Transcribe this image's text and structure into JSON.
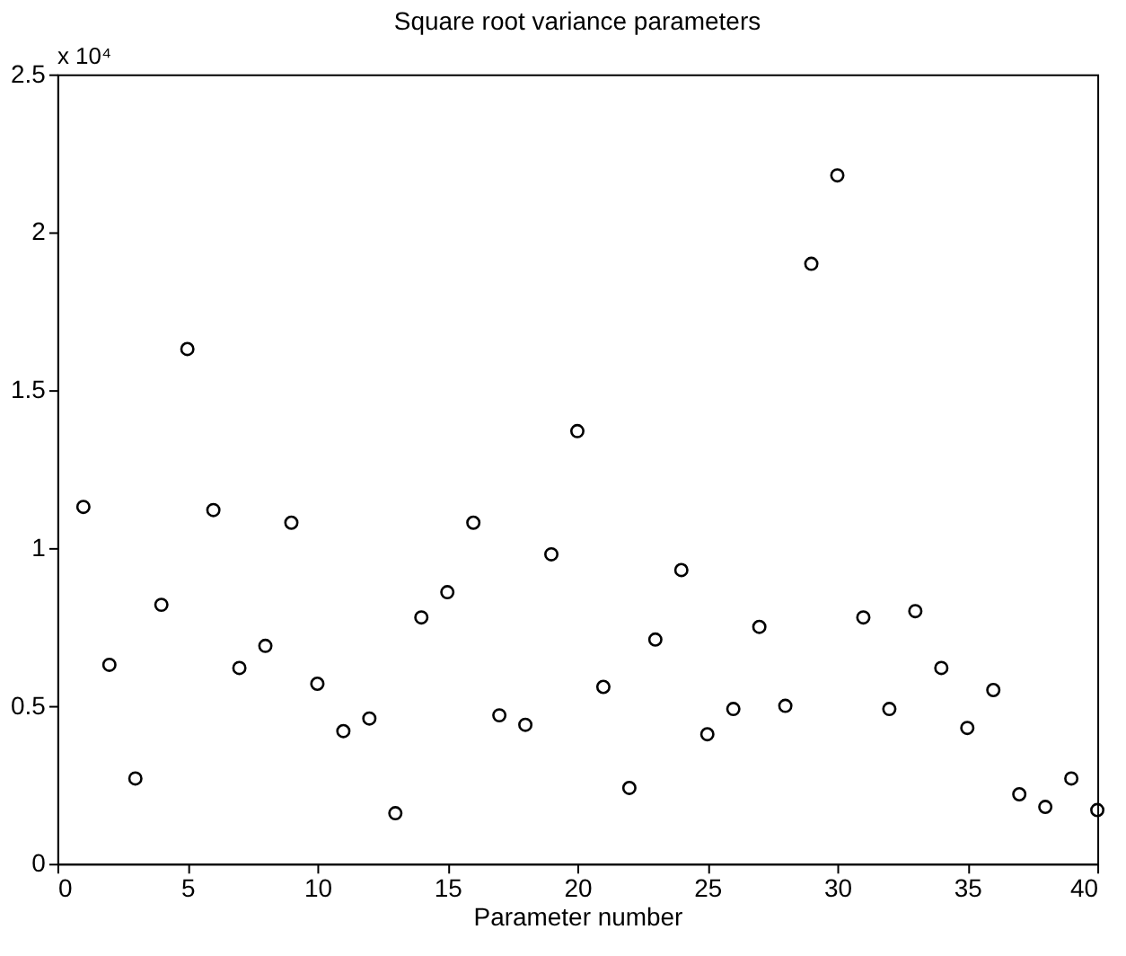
{
  "chart_data": {
    "type": "scatter",
    "title": "Square root variance parameters",
    "xlabel": "Parameter number",
    "x": [
      1,
      2,
      3,
      4,
      5,
      6,
      7,
      8,
      9,
      10,
      11,
      12,
      13,
      14,
      15,
      16,
      17,
      18,
      19,
      20,
      21,
      22,
      23,
      24,
      25,
      26,
      27,
      28,
      29,
      30,
      31,
      32,
      33,
      34,
      35,
      36,
      37,
      38,
      39,
      40
    ],
    "series": [
      {
        "color": "#000000",
        "values": [
          1.13,
          0.63,
          0.27,
          0.82,
          1.63,
          1.12,
          0.62,
          0.69,
          1.08,
          0.57,
          0.42,
          0.46,
          0.16,
          0.78,
          0.86,
          1.08,
          0.47,
          0.44,
          0.98,
          1.37,
          0.56,
          0.24,
          0.71,
          0.93,
          0.41,
          0.49,
          0.75,
          0.5,
          1.9,
          2.18,
          0.78,
          0.49,
          0.8,
          0.62,
          0.43,
          0.55,
          0.22,
          0.18,
          0.27,
          0.17
        ]
      }
    ],
    "annotations": [
      "x 10⁴"
    ],
    "xlim": [
      0,
      40
    ],
    "xticks": [
      0,
      5,
      10,
      15,
      20,
      25,
      30,
      35,
      40
    ],
    "ylim": [
      0,
      2.5
    ],
    "yticks": [
      0,
      0.5,
      1,
      1.5,
      2,
      2.5
    ],
    "marker": "circle",
    "grid": false
  }
}
